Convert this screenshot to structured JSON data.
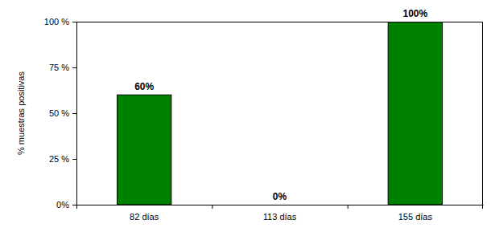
{
  "chart_data": {
    "type": "bar",
    "categories": [
      "82 días",
      "113 días",
      "155 días"
    ],
    "values": [
      60,
      0,
      100
    ],
    "value_labels": [
      "60%",
      "0%",
      "100%"
    ],
    "data_labels": true,
    "color": "#008000",
    "ylabel": "% muestras positivas",
    "ylim": [
      0,
      100
    ],
    "yticks": [
      {
        "value": 0,
        "label": "0%"
      },
      {
        "value": 25,
        "label": "25 %"
      },
      {
        "value": 50,
        "label": "50 %"
      },
      {
        "value": 75,
        "label": "75 %"
      },
      {
        "value": 100,
        "label": "100 %"
      }
    ],
    "grid": false
  }
}
